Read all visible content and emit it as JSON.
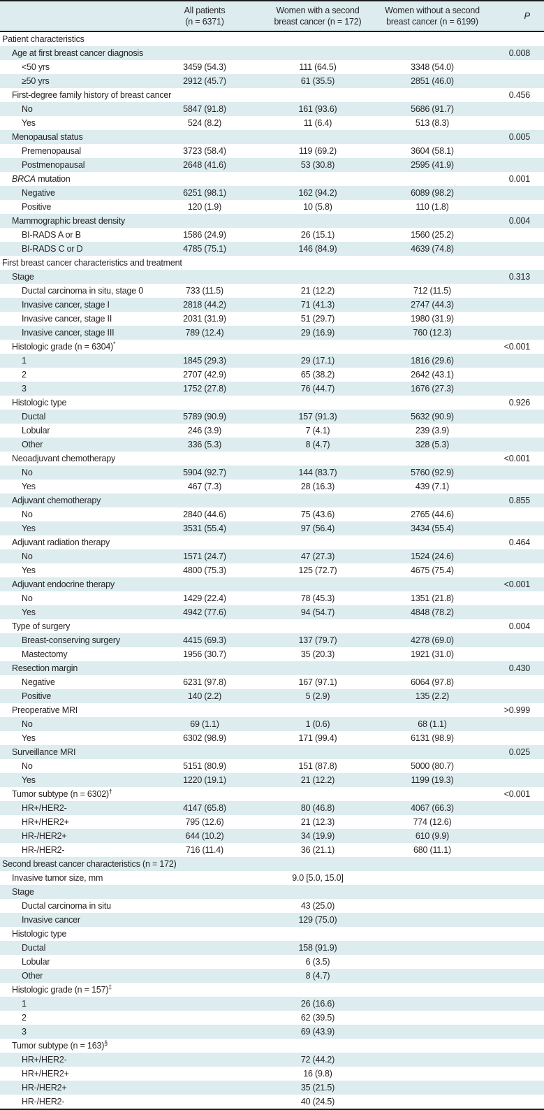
{
  "colors": {
    "stripe_bg": "#dcecef",
    "header_bg": "#dcecef",
    "border": "#1c1c1c",
    "text": "#282425"
  },
  "table": {
    "header": {
      "col_all_line1": "All patients",
      "col_all_line2": "(n = 6371)",
      "col_with_line1": "Women with a second",
      "col_with_line2": "breast cancer (n = 172)",
      "col_without_line1": "Women without a second",
      "col_without_line2": "breast cancer (n = 6199)",
      "col_p": "P"
    },
    "rows": [
      {
        "label": "Patient characteristics",
        "indent": 0,
        "cells": [
          "",
          "",
          ""
        ],
        "p": ""
      },
      {
        "label": "Age at first breast cancer diagnosis",
        "indent": 1,
        "cells": [
          "",
          "",
          ""
        ],
        "p": "0.008"
      },
      {
        "label": "<50 yrs",
        "indent": 2,
        "cells": [
          "3459 (54.3)",
          "111 (64.5)",
          "3348 (54.0)"
        ],
        "p": ""
      },
      {
        "label": "≥50 yrs",
        "indent": 2,
        "cells": [
          "2912 (45.7)",
          "61 (35.5)",
          "2851 (46.0)"
        ],
        "p": ""
      },
      {
        "label": "First-degree family history of breast cancer",
        "indent": 1,
        "cells": [
          "",
          "",
          ""
        ],
        "p": "0.456"
      },
      {
        "label": "No",
        "indent": 2,
        "cells": [
          "5847 (91.8)",
          "161 (93.6)",
          "5686 (91.7)"
        ],
        "p": ""
      },
      {
        "label": "Yes",
        "indent": 2,
        "cells": [
          "524 (8.2)",
          "11 (6.4)",
          "513 (8.3)"
        ],
        "p": ""
      },
      {
        "label": "Menopausal status",
        "indent": 1,
        "cells": [
          "",
          "",
          ""
        ],
        "p": "0.005"
      },
      {
        "label": "Premenopausal",
        "indent": 2,
        "cells": [
          "3723 (58.4)",
          "119 (69.2)",
          "3604 (58.1)"
        ],
        "p": ""
      },
      {
        "label": "Postmenopausal",
        "indent": 2,
        "cells": [
          "2648 (41.6)",
          "53 (30.8)",
          "2595 (41.9)"
        ],
        "p": ""
      },
      {
        "italic_lead": "BRCA",
        "label": " mutation",
        "indent": 1,
        "cells": [
          "",
          "",
          ""
        ],
        "p": "0.001"
      },
      {
        "label": "Negative",
        "indent": 2,
        "cells": [
          "6251 (98.1)",
          "162 (94.2)",
          "6089 (98.2)"
        ],
        "p": ""
      },
      {
        "label": "Positive",
        "indent": 2,
        "cells": [
          "120 (1.9)",
          "10 (5.8)",
          "110 (1.8)"
        ],
        "p": ""
      },
      {
        "label": "Mammographic breast density",
        "indent": 1,
        "cells": [
          "",
          "",
          ""
        ],
        "p": "0.004"
      },
      {
        "label": "BI-RADS A or B",
        "indent": 2,
        "cells": [
          "1586 (24.9)",
          "26 (15.1)",
          "1560 (25.2)"
        ],
        "p": ""
      },
      {
        "label": "BI-RADS C or D",
        "indent": 2,
        "cells": [
          "4785 (75.1)",
          "146 (84.9)",
          "4639 (74.8)"
        ],
        "p": ""
      },
      {
        "label": "First breast cancer characteristics and treatment",
        "indent": 0,
        "cells": [
          "",
          "",
          ""
        ],
        "p": ""
      },
      {
        "label": "Stage",
        "indent": 1,
        "cells": [
          "",
          "",
          ""
        ],
        "p": "0.313"
      },
      {
        "label": "Ductal carcinoma in situ, stage 0",
        "indent": 2,
        "cells": [
          "733 (11.5)",
          "21 (12.2)",
          "712 (11.5)"
        ],
        "p": ""
      },
      {
        "label": "Invasive cancer, stage I",
        "indent": 2,
        "cells": [
          "2818 (44.2)",
          "71 (41.3)",
          "2747 (44.3)"
        ],
        "p": ""
      },
      {
        "label": "Invasive cancer, stage II",
        "indent": 2,
        "cells": [
          "2031 (31.9)",
          "51 (29.7)",
          "1980 (31.9)"
        ],
        "p": ""
      },
      {
        "label": "Invasive cancer, stage III",
        "indent": 2,
        "cells": [
          "789 (12.4)",
          "29 (16.9)",
          "760 (12.3)"
        ],
        "p": ""
      },
      {
        "label": "Histologic grade (n = 6304)",
        "sup": "*",
        "indent": 1,
        "cells": [
          "",
          "",
          ""
        ],
        "p": "<0.001"
      },
      {
        "label": "1",
        "indent": 2,
        "cells": [
          "1845 (29.3)",
          "29 (17.1)",
          "1816 (29.6)"
        ],
        "p": ""
      },
      {
        "label": "2",
        "indent": 2,
        "cells": [
          "2707 (42.9)",
          "65 (38.2)",
          "2642 (43.1)"
        ],
        "p": ""
      },
      {
        "label": "3",
        "indent": 2,
        "cells": [
          "1752 (27.8)",
          "76 (44.7)",
          "1676 (27.3)"
        ],
        "p": ""
      },
      {
        "label": "Histologic type",
        "indent": 1,
        "cells": [
          "",
          "",
          ""
        ],
        "p": "0.926"
      },
      {
        "label": "Ductal",
        "indent": 2,
        "cells": [
          "5789 (90.9)",
          "157 (91.3)",
          "5632 (90.9)"
        ],
        "p": ""
      },
      {
        "label": "Lobular",
        "indent": 2,
        "cells": [
          "246 (3.9)",
          "7 (4.1)",
          "239 (3.9)"
        ],
        "p": ""
      },
      {
        "label": "Other",
        "indent": 2,
        "cells": [
          "336 (5.3)",
          "8 (4.7)",
          "328 (5.3)"
        ],
        "p": ""
      },
      {
        "label": "Neoadjuvant chemotherapy",
        "indent": 1,
        "cells": [
          "",
          "",
          ""
        ],
        "p": "<0.001"
      },
      {
        "label": "No",
        "indent": 2,
        "cells": [
          "5904 (92.7)",
          "144 (83.7)",
          "5760 (92.9)"
        ],
        "p": ""
      },
      {
        "label": "Yes",
        "indent": 2,
        "cells": [
          "467 (7.3)",
          "28 (16.3)",
          "439 (7.1)"
        ],
        "p": ""
      },
      {
        "label": "Adjuvant chemotherapy",
        "indent": 1,
        "cells": [
          "",
          "",
          ""
        ],
        "p": "0.855"
      },
      {
        "label": "No",
        "indent": 2,
        "cells": [
          "2840 (44.6)",
          "75 (43.6)",
          "2765 (44.6)"
        ],
        "p": ""
      },
      {
        "label": "Yes",
        "indent": 2,
        "cells": [
          "3531 (55.4)",
          "97 (56.4)",
          "3434 (55.4)"
        ],
        "p": ""
      },
      {
        "label": "Adjuvant radiation therapy",
        "indent": 1,
        "cells": [
          "",
          "",
          ""
        ],
        "p": "0.464"
      },
      {
        "label": "No",
        "indent": 2,
        "cells": [
          "1571 (24.7)",
          "47 (27.3)",
          "1524 (24.6)"
        ],
        "p": ""
      },
      {
        "label": "Yes",
        "indent": 2,
        "cells": [
          "4800 (75.3)",
          "125 (72.7)",
          "4675 (75.4)"
        ],
        "p": ""
      },
      {
        "label": "Adjuvant endocrine therapy",
        "indent": 1,
        "cells": [
          "",
          "",
          ""
        ],
        "p": "<0.001"
      },
      {
        "label": "No",
        "indent": 2,
        "cells": [
          "1429 (22.4)",
          "78 (45.3)",
          "1351 (21.8)"
        ],
        "p": ""
      },
      {
        "label": "Yes",
        "indent": 2,
        "cells": [
          "4942 (77.6)",
          "94 (54.7)",
          "4848 (78.2)"
        ],
        "p": ""
      },
      {
        "label": "Type of surgery",
        "indent": 1,
        "cells": [
          "",
          "",
          ""
        ],
        "p": "0.004"
      },
      {
        "label": "Breast-conserving surgery",
        "indent": 2,
        "cells": [
          "4415 (69.3)",
          "137 (79.7)",
          "4278 (69.0)"
        ],
        "p": ""
      },
      {
        "label": "Mastectomy",
        "indent": 2,
        "cells": [
          "1956 (30.7)",
          "35 (20.3)",
          "1921 (31.0)"
        ],
        "p": ""
      },
      {
        "label": "Resection margin",
        "indent": 1,
        "cells": [
          "",
          "",
          ""
        ],
        "p": "0.430"
      },
      {
        "label": "Negative",
        "indent": 2,
        "cells": [
          "6231 (97.8)",
          "167 (97.1)",
          "6064 (97.8)"
        ],
        "p": ""
      },
      {
        "label": "Positive",
        "indent": 2,
        "cells": [
          "140 (2.2)",
          "5 (2.9)",
          "135 (2.2)"
        ],
        "p": ""
      },
      {
        "label": "Preoperative MRI",
        "indent": 1,
        "cells": [
          "",
          "",
          ""
        ],
        "p": ">0.999"
      },
      {
        "label": "No",
        "indent": 2,
        "cells": [
          "69 (1.1)",
          "1 (0.6)",
          "68 (1.1)"
        ],
        "p": ""
      },
      {
        "label": "Yes",
        "indent": 2,
        "cells": [
          "6302 (98.9)",
          "171 (99.4)",
          "6131 (98.9)"
        ],
        "p": ""
      },
      {
        "label": "Surveillance MRI",
        "indent": 1,
        "cells": [
          "",
          "",
          ""
        ],
        "p": "0.025"
      },
      {
        "label": "No",
        "indent": 2,
        "cells": [
          "5151 (80.9)",
          "151 (87.8)",
          "5000 (80.7)"
        ],
        "p": ""
      },
      {
        "label": "Yes",
        "indent": 2,
        "cells": [
          "1220 (19.1)",
          "21 (12.2)",
          "1199 (19.3)"
        ],
        "p": ""
      },
      {
        "label": "Tumor subtype (n = 6302)",
        "sup": "†",
        "indent": 1,
        "cells": [
          "",
          "",
          ""
        ],
        "p": "<0.001"
      },
      {
        "label": "HR+/HER2-",
        "indent": 2,
        "cells": [
          "4147 (65.8)",
          "80 (46.8)",
          "4067 (66.3)"
        ],
        "p": ""
      },
      {
        "label": "HR+/HER2+",
        "indent": 2,
        "cells": [
          "795 (12.6)",
          "21 (12.3)",
          "774 (12.6)"
        ],
        "p": ""
      },
      {
        "label": "HR-/HER2+",
        "indent": 2,
        "cells": [
          "644 (10.2)",
          "34 (19.9)",
          "610 (9.9)"
        ],
        "p": ""
      },
      {
        "label": "HR-/HER2-",
        "indent": 2,
        "cells": [
          "716 (11.4)",
          "36 (21.1)",
          "680 (11.1)"
        ],
        "p": ""
      },
      {
        "label": "Second breast cancer characteristics (n = 172)",
        "indent": 0,
        "cells": [
          "",
          "",
          ""
        ],
        "p": ""
      },
      {
        "label": "Invasive tumor size, mm",
        "indent": 1,
        "cells": [
          "",
          "9.0 [5.0, 15.0]",
          ""
        ],
        "p": ""
      },
      {
        "label": "Stage",
        "indent": 1,
        "cells": [
          "",
          "",
          ""
        ],
        "p": ""
      },
      {
        "label": "Ductal carcinoma in situ",
        "indent": 2,
        "cells": [
          "",
          "43 (25.0)",
          ""
        ],
        "p": ""
      },
      {
        "label": "Invasive cancer",
        "indent": 2,
        "cells": [
          "",
          "129 (75.0)",
          ""
        ],
        "p": ""
      },
      {
        "label": "Histologic type",
        "indent": 1,
        "cells": [
          "",
          "",
          ""
        ],
        "p": ""
      },
      {
        "label": "Ductal",
        "indent": 2,
        "cells": [
          "",
          "158 (91.9)",
          ""
        ],
        "p": ""
      },
      {
        "label": "Lobular",
        "indent": 2,
        "cells": [
          "",
          "6 (3.5)",
          ""
        ],
        "p": ""
      },
      {
        "label": "Other",
        "indent": 2,
        "cells": [
          "",
          "8 (4.7)",
          ""
        ],
        "p": ""
      },
      {
        "label": "Histologic grade (n = 157)",
        "sup": "‡",
        "indent": 1,
        "cells": [
          "",
          "",
          ""
        ],
        "p": ""
      },
      {
        "label": "1",
        "indent": 2,
        "cells": [
          "",
          "26 (16.6)",
          ""
        ],
        "p": ""
      },
      {
        "label": "2",
        "indent": 2,
        "cells": [
          "",
          "62 (39.5)",
          ""
        ],
        "p": ""
      },
      {
        "label": "3",
        "indent": 2,
        "cells": [
          "",
          "69 (43.9)",
          ""
        ],
        "p": ""
      },
      {
        "label": "Tumor subtype (n = 163)",
        "sup": "§",
        "indent": 1,
        "cells": [
          "",
          "",
          ""
        ],
        "p": ""
      },
      {
        "label": "HR+/HER2-",
        "indent": 2,
        "cells": [
          "",
          "72 (44.2)",
          ""
        ],
        "p": ""
      },
      {
        "label": "HR+/HER2+",
        "indent": 2,
        "cells": [
          "",
          "16 (9.8)",
          ""
        ],
        "p": ""
      },
      {
        "label": "HR-/HER2+",
        "indent": 2,
        "cells": [
          "",
          "35 (21.5)",
          ""
        ],
        "p": ""
      },
      {
        "label": "HR-/HER2-",
        "indent": 2,
        "cells": [
          "",
          "40 (24.5)",
          ""
        ],
        "p": ""
      }
    ]
  }
}
